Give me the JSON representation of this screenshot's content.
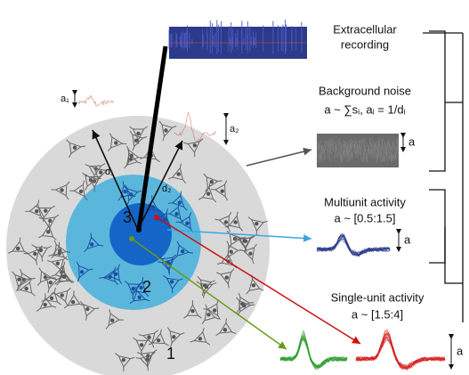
{
  "labels": {
    "recording": [
      "Extracellular",
      "recording"
    ],
    "noise_title": "Background noise",
    "noise_formula": "a ~ ∑sᵢ, aᵢ = 1/dᵢ",
    "noise_amp": "a",
    "multi_title": "Multiunit activity",
    "multi_formula": "a ~ [0.5:1.5]",
    "multi_amp": "a",
    "single_title": "Single-unit activity",
    "single_formula": "a ~ [1.5:4]",
    "single_amp": "a",
    "zone1": "1",
    "zone2": "2",
    "zone3": "3",
    "a1": "a₁",
    "a2": "a₂",
    "d1": "d₁",
    "d2": "d₂"
  }
}
